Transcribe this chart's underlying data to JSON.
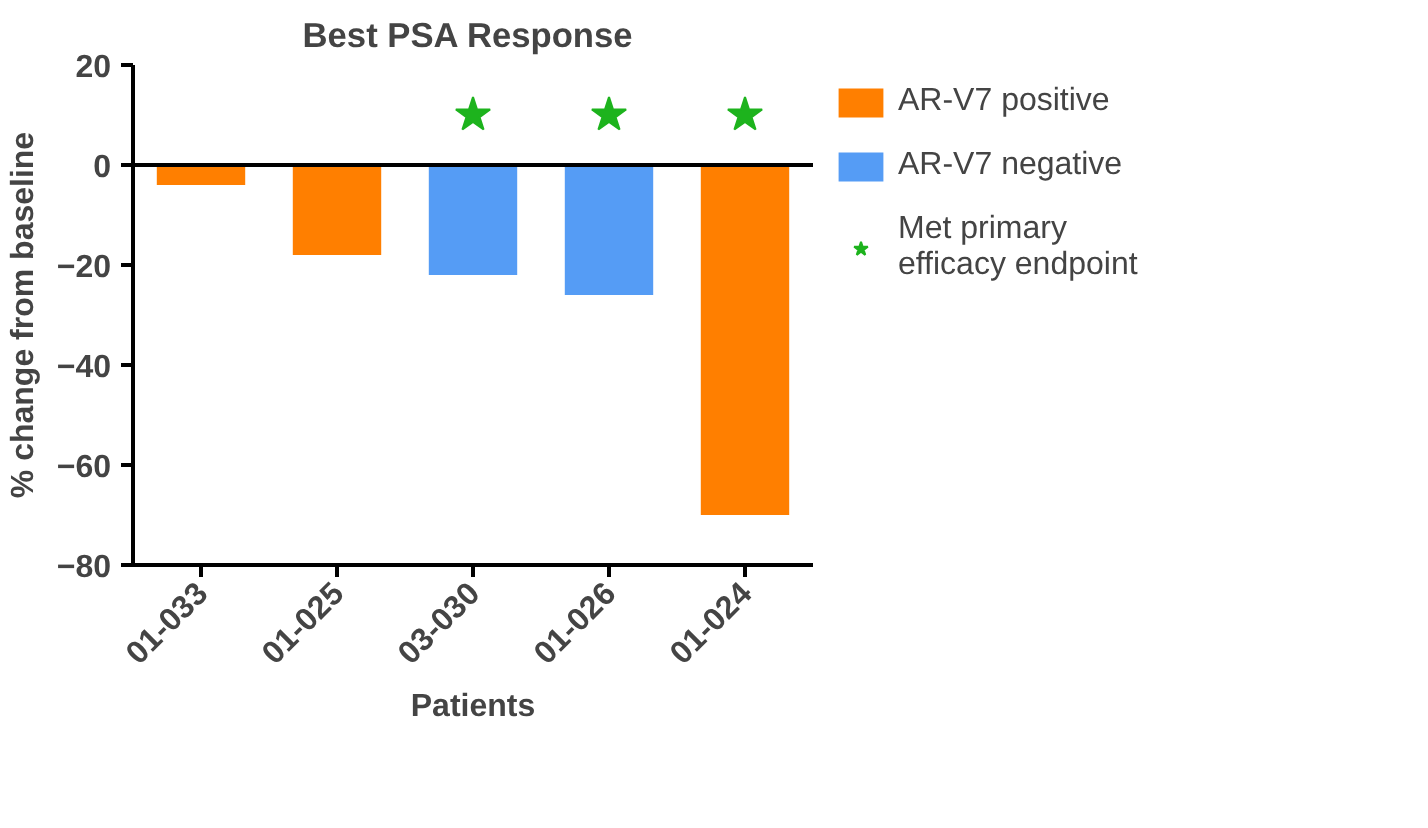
{
  "chart_data": {
    "type": "bar",
    "title": "Best  PSA Response",
    "xlabel": "Patients",
    "ylabel": "% change from baseline",
    "categories": [
      "01-033",
      "01-025",
      "03-030",
      "01-026",
      "01-024"
    ],
    "series": [
      {
        "name": "AR-V7 positive",
        "color": "#ff7f00",
        "values": [
          -4,
          -18,
          null,
          null,
          -70
        ]
      },
      {
        "name": "AR-V7 negative",
        "color": "#559cf5",
        "values": [
          null,
          null,
          -22,
          -26,
          null
        ]
      },
      {
        "name": "Met primary efficacy endpoint",
        "type": "scatter",
        "marker": "star",
        "color": "#1db31d",
        "values": [
          null,
          null,
          10,
          10,
          10
        ]
      }
    ],
    "ylim": [
      -80,
      20
    ],
    "yticks": [
      -80,
      -60,
      -40,
      -20,
      0,
      20
    ],
    "ref_lines": [
      {
        "axis": "y",
        "value": 0,
        "color": "#000000"
      }
    ],
    "grid": false,
    "legend": "right"
  }
}
